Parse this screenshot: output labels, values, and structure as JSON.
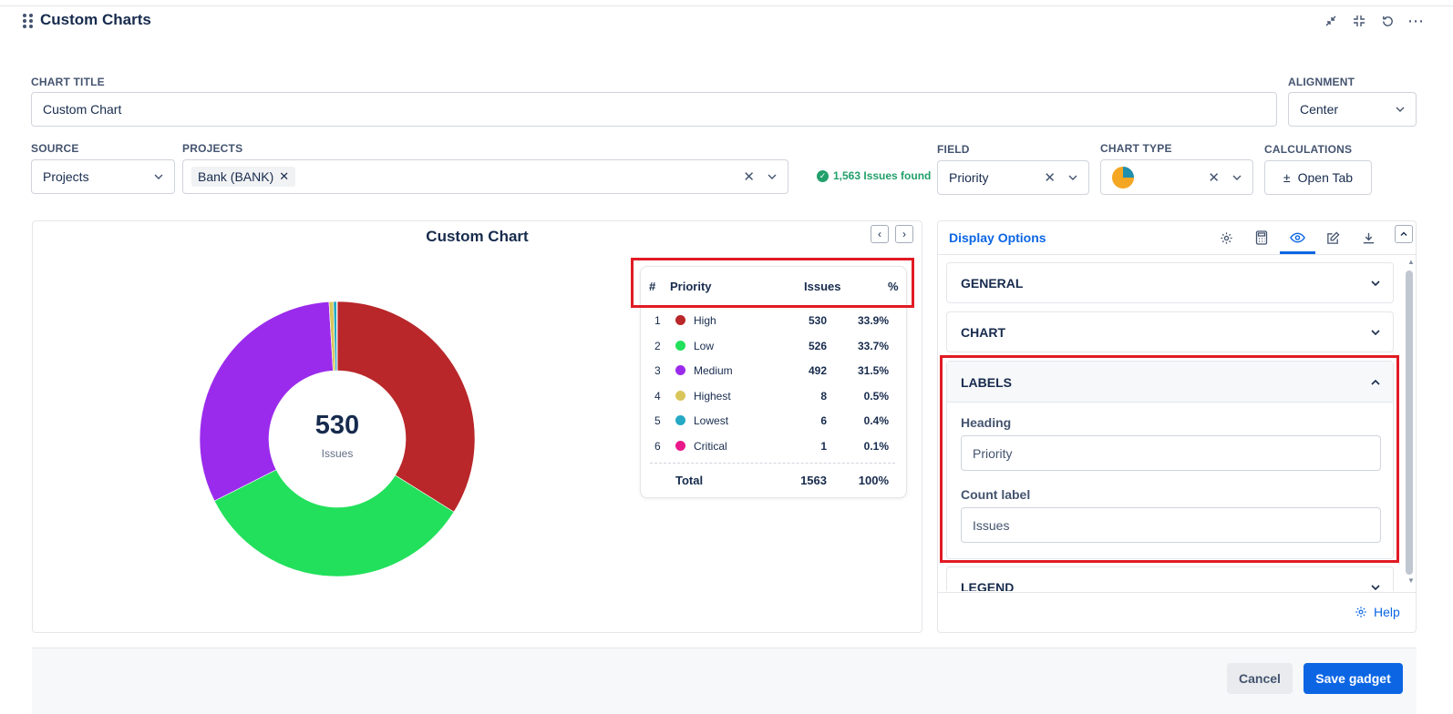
{
  "gadget": {
    "title": "Custom Charts"
  },
  "form": {
    "chart_title_label": "CHART TITLE",
    "chart_title_value": "Custom Chart",
    "alignment_label": "ALIGNMENT",
    "alignment_value": "Center",
    "source_label": "SOURCE",
    "source_value": "Projects",
    "projects_label": "PROJECTS",
    "projects_chip": "Bank (BANK)",
    "issues_found": "1,563 Issues found",
    "field_label": "FIELD",
    "field_value": "Priority",
    "chart_type_label": "CHART TYPE",
    "calculations_label": "CALCULATIONS",
    "calculations_button": "Open Tab"
  },
  "chart": {
    "title": "Custom Chart",
    "center_value": "530",
    "center_label": "Issues"
  },
  "chart_data": {
    "type": "pie",
    "title": "Custom Chart",
    "categories": [
      "High",
      "Low",
      "Medium",
      "Highest",
      "Lowest",
      "Critical"
    ],
    "values": [
      530,
      526,
      492,
      8,
      6,
      1
    ],
    "colors": [
      "#b9272a",
      "#22e05b",
      "#9b2bec",
      "#d9c65b",
      "#25a9c4",
      "#e9198a"
    ],
    "total": 1563
  },
  "table": {
    "headers": {
      "num": "#",
      "priority": "Priority",
      "issues": "Issues",
      "pct": "%"
    },
    "rows": [
      {
        "num": "1",
        "name": "High",
        "issues": "530",
        "pct": "33.9%",
        "color": "#b9272a"
      },
      {
        "num": "2",
        "name": "Low",
        "issues": "526",
        "pct": "33.7%",
        "color": "#22e05b"
      },
      {
        "num": "3",
        "name": "Medium",
        "issues": "492",
        "pct": "31.5%",
        "color": "#9b2bec"
      },
      {
        "num": "4",
        "name": "Highest",
        "issues": "8",
        "pct": "0.5%",
        "color": "#d9c65b"
      },
      {
        "num": "5",
        "name": "Lowest",
        "issues": "6",
        "pct": "0.4%",
        "color": "#25a9c4"
      },
      {
        "num": "6",
        "name": "Critical",
        "issues": "1",
        "pct": "0.1%",
        "color": "#e9198a"
      }
    ],
    "total": {
      "label": "Total",
      "issues": "1563",
      "pct": "100%"
    }
  },
  "display_options": {
    "title": "Display Options",
    "sections": {
      "general": "GENERAL",
      "chart": "CHART",
      "labels": "LABELS",
      "legend": "LEGEND"
    },
    "labels": {
      "heading_label": "Heading",
      "heading_value": "Priority",
      "count_label": "Count label",
      "count_value": "Issues"
    },
    "help": "Help"
  },
  "footer": {
    "cancel": "Cancel",
    "save": "Save gadget"
  }
}
